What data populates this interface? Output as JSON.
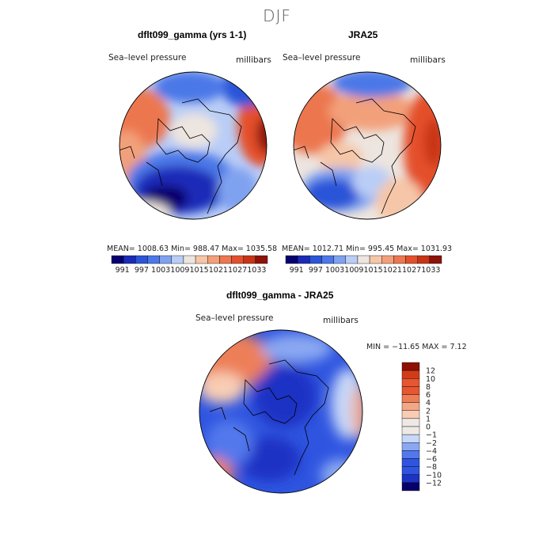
{
  "season": "DJF",
  "colors": {
    "scale": [
      "#08006e",
      "#1a2bb8",
      "#2a55d8",
      "#4c78e8",
      "#7fa2f0",
      "#b9cdf6",
      "#ede5df",
      "#f6c6a8",
      "#f2a07a",
      "#ec7750",
      "#e4502c",
      "#c83416",
      "#8e1208"
    ],
    "diff_scale": [
      "#07006b",
      "#1c33c4",
      "#2f55e0",
      "#5278ec",
      "#8aa8f2",
      "#c6d7f8",
      "#efe9e5",
      "#f8cdb4",
      "#f2a886",
      "#ed7f58",
      "#e65630",
      "#d23b18",
      "#8e0e04"
    ]
  },
  "panels": {
    "model": {
      "title": "dflt099_gamma (yrs 1-1)",
      "variable": "Sea–level pressure",
      "units": "millibars",
      "stats_text": "MEAN= 1008.63   Min= 988.47   Max= 1035.58"
    },
    "obs": {
      "title": "JRA25",
      "variable": "Sea–level pressure",
      "units": "millibars",
      "stats_text": "MEAN= 1012.71   Min= 995.45   Max= 1031.93"
    },
    "diff": {
      "title": "dflt099_gamma - JRA25",
      "variable": "Sea–level pressure",
      "units": "millibars",
      "stats_text": "MIN = −11.65  MAX =    7.12"
    }
  },
  "colorbar_top": {
    "labels": [
      "991",
      "997",
      "1003",
      "1009",
      "1015",
      "1021",
      "1027",
      "1033"
    ]
  },
  "colorbar_diff": {
    "labels": [
      "12",
      "10",
      "8",
      "6",
      "4",
      "2",
      "1",
      "0",
      "−1",
      "−2",
      "−4",
      "−6",
      "−8",
      "−10",
      "−12"
    ]
  }
}
